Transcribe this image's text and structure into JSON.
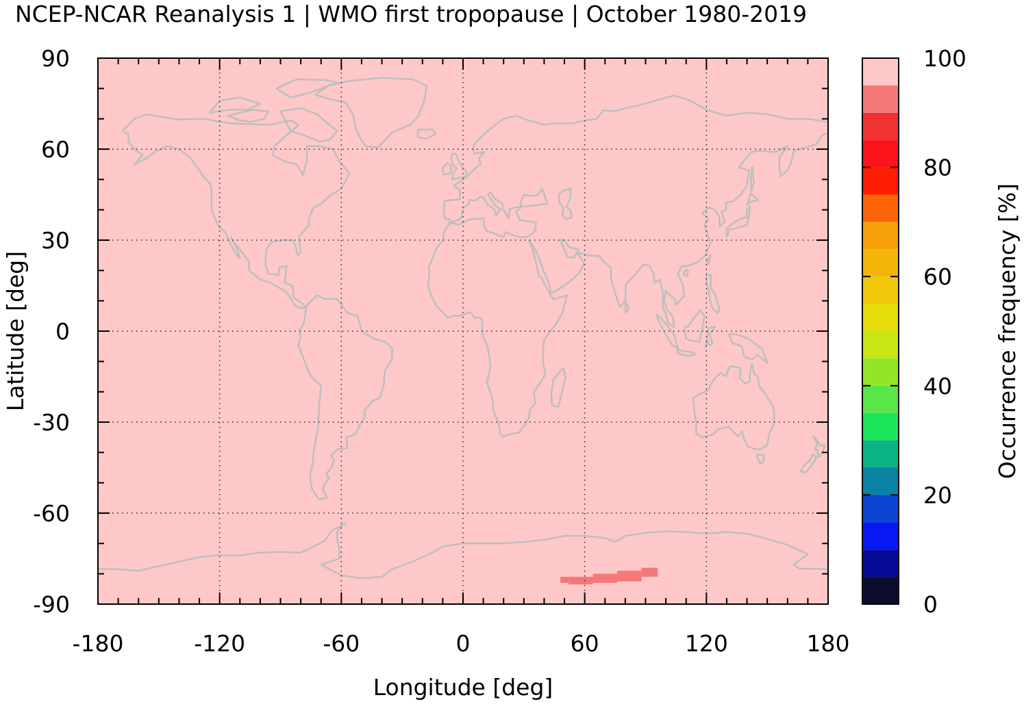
{
  "chart_data": {
    "type": "heatmap",
    "title": "NCEP-NCAR Reanalysis 1 | WMO first tropopause | October 1980-2019",
    "xlabel": "Longitude [deg]",
    "ylabel": "Latitude [deg]",
    "colorbar_label": "Occurrence frequency [%]",
    "xlim": [
      -180,
      180
    ],
    "ylim": [
      -90,
      90
    ],
    "x_ticks": [
      -180,
      -120,
      -60,
      0,
      60,
      120,
      180
    ],
    "y_ticks": [
      90,
      60,
      30,
      0,
      -30,
      -60,
      -90
    ],
    "colorbar_range": [
      0,
      100
    ],
    "colorbar_ticks": [
      0,
      20,
      40,
      60,
      80,
      100
    ],
    "grid": true,
    "colorbar_levels": [
      {
        "range": [
          0,
          5
        ],
        "color": "#0b0b2e"
      },
      {
        "range": [
          5,
          10
        ],
        "color": "#050a96"
      },
      {
        "range": [
          10,
          15
        ],
        "color": "#0519f0"
      },
      {
        "range": [
          15,
          20
        ],
        "color": "#0a46d2"
      },
      {
        "range": [
          20,
          25
        ],
        "color": "#0a82a5"
      },
      {
        "range": [
          25,
          30
        ],
        "color": "#0ab482"
      },
      {
        "range": [
          30,
          35
        ],
        "color": "#19e65a"
      },
      {
        "range": [
          35,
          40
        ],
        "color": "#5ae646"
      },
      {
        "range": [
          40,
          45
        ],
        "color": "#91e628"
      },
      {
        "range": [
          45,
          50
        ],
        "color": "#c8e614"
      },
      {
        "range": [
          50,
          55
        ],
        "color": "#e6dc0a"
      },
      {
        "range": [
          55,
          60
        ],
        "color": "#f0c80a"
      },
      {
        "range": [
          60,
          65
        ],
        "color": "#f5b40a"
      },
      {
        "range": [
          65,
          70
        ],
        "color": "#f5a00a"
      },
      {
        "range": [
          70,
          75
        ],
        "color": "#fa6405"
      },
      {
        "range": [
          75,
          80
        ],
        "color": "#ff1e05"
      },
      {
        "range": [
          80,
          85
        ],
        "color": "#fa1419"
      },
      {
        "range": [
          85,
          90
        ],
        "color": "#f03232"
      },
      {
        "range": [
          90,
          95
        ],
        "color": "#f57878"
      },
      {
        "range": [
          95,
          100
        ],
        "color": "#ffc8c8"
      }
    ],
    "background_value_range": [
      95,
      100
    ],
    "anomaly_regions": [
      {
        "value_range": [
          90,
          95
        ],
        "lon": [
          48,
          52
        ],
        "lat": [
          -81,
          -83
        ]
      },
      {
        "value_range": [
          90,
          95
        ],
        "lon": [
          52,
          64
        ],
        "lat": [
          -81,
          -83.5
        ]
      },
      {
        "value_range": [
          90,
          95
        ],
        "lon": [
          64,
          76
        ],
        "lat": [
          -80,
          -83
        ]
      },
      {
        "value_range": [
          90,
          95
        ],
        "lon": [
          76,
          88
        ],
        "lat": [
          -79,
          -82.5
        ]
      },
      {
        "value_range": [
          90,
          95
        ],
        "lon": [
          88,
          96
        ],
        "lat": [
          -78,
          -81
        ]
      }
    ],
    "coastline_color": "#bebebe"
  }
}
